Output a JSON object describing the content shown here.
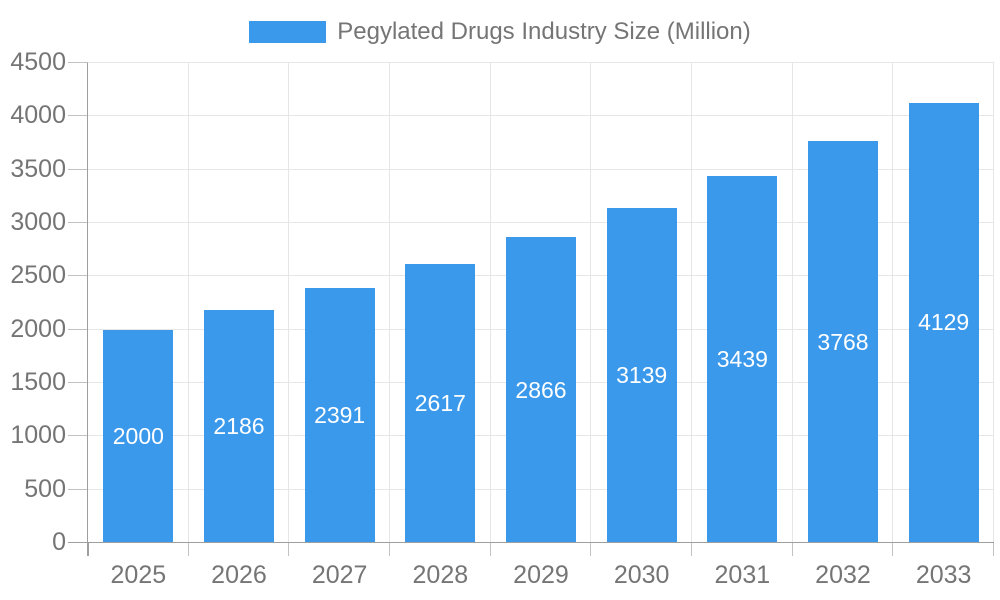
{
  "chart_data": {
    "type": "bar",
    "title": "Pegylated Drugs Industry Size (Million)",
    "categories": [
      "2025",
      "2026",
      "2027",
      "2028",
      "2029",
      "2030",
      "2031",
      "2032",
      "2033"
    ],
    "values": [
      2000,
      2186,
      2391,
      2617,
      2866,
      3139,
      3439,
      3768,
      4129
    ],
    "yticks": [
      0,
      500,
      1000,
      1500,
      2000,
      2500,
      3000,
      3500,
      4000,
      4500
    ],
    "ylim": [
      0,
      4500
    ],
    "xlabel": "",
    "ylabel": "",
    "grid": true,
    "legend_position": "top",
    "value_label_position": "inside-center"
  },
  "colors": {
    "bar": "#3b99ec",
    "bar_label": "#ffffff",
    "axis_line": "#9e9e9e",
    "gridline": "#e6e6e6",
    "tick": "#c2c2c2",
    "text": "#757575",
    "background": "#ffffff"
  }
}
